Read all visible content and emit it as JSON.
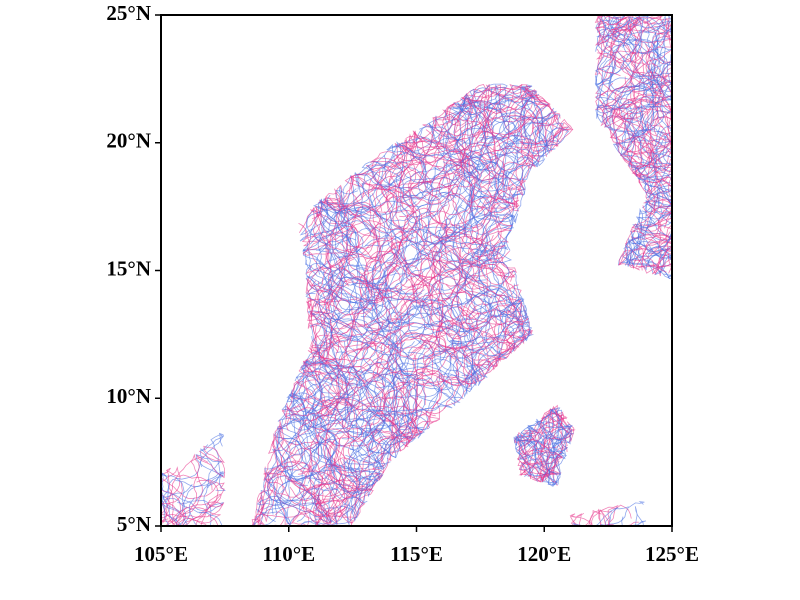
{
  "chart_data": {
    "type": "map",
    "xlim": [
      105,
      125
    ],
    "ylim": [
      5,
      25
    ],
    "xticks": [
      {
        "value": 105,
        "label": "105°E"
      },
      {
        "value": 110,
        "label": "110°E"
      },
      {
        "value": 115,
        "label": "115°E"
      },
      {
        "value": 120,
        "label": "120°E"
      },
      {
        "value": 125,
        "label": "125°E"
      }
    ],
    "yticks": [
      {
        "value": 5,
        "label": "5°N"
      },
      {
        "value": 10,
        "label": "10°N"
      },
      {
        "value": 15,
        "label": "15°N"
      },
      {
        "value": 20,
        "label": "20°N"
      },
      {
        "value": 25,
        "label": "25°N"
      }
    ],
    "track_colors": [
      "#e8338a",
      "#4a6fe3"
    ]
  }
}
